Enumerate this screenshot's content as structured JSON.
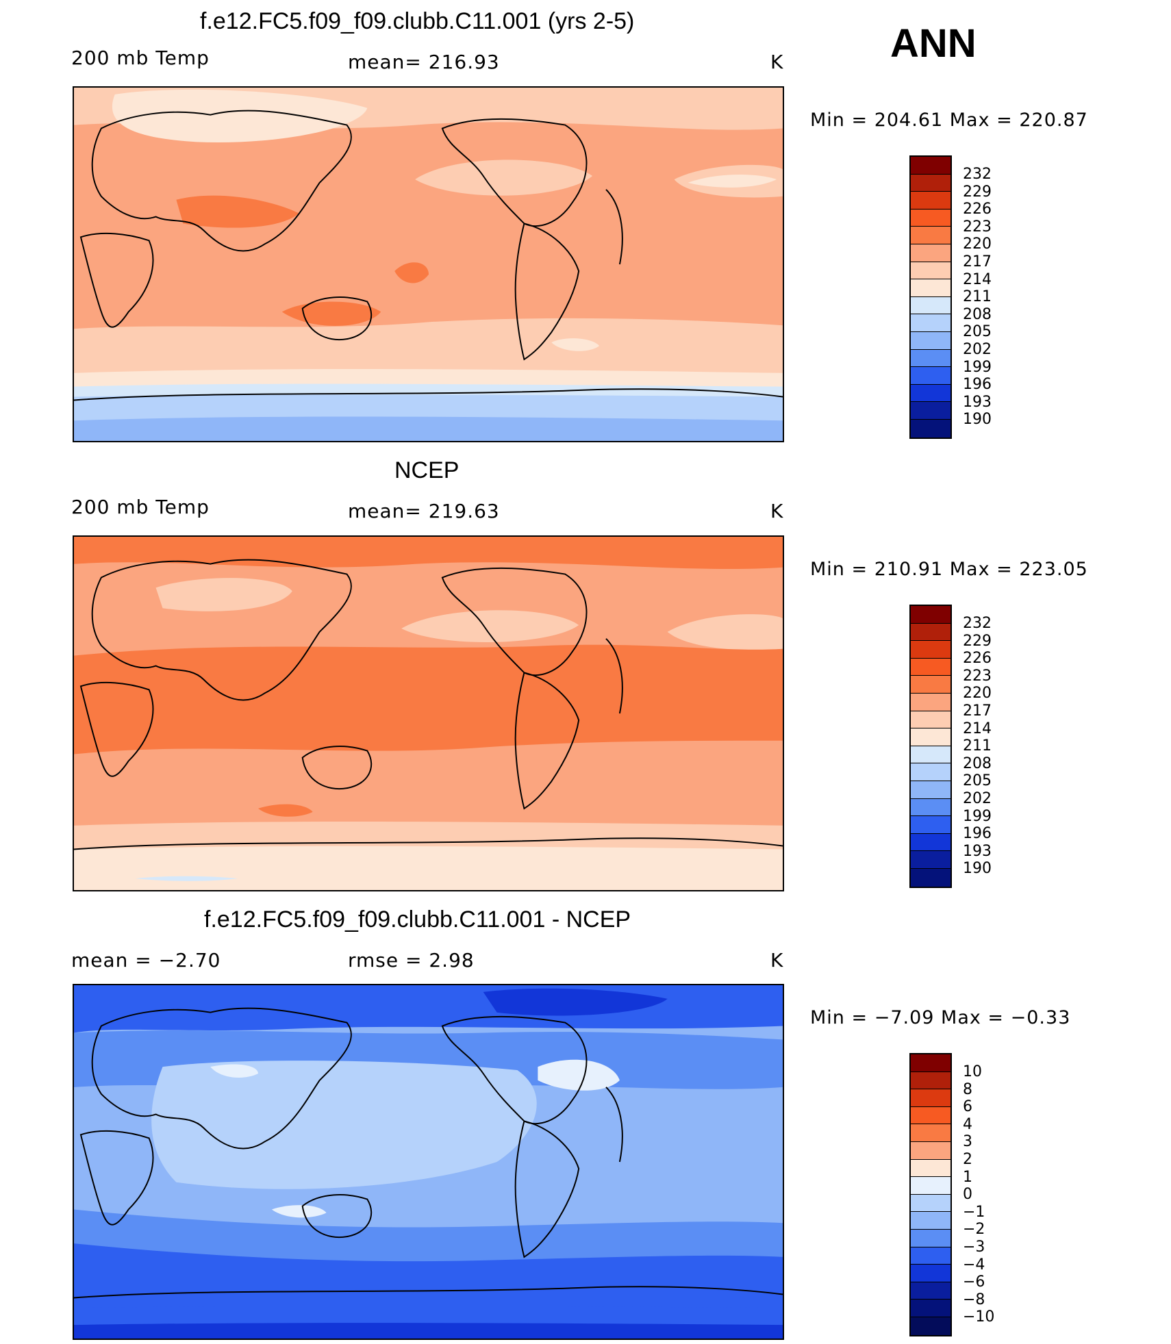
{
  "season": "ANN",
  "panels": [
    {
      "id": "model",
      "title": "f.e12.FC5.f09_f09.clubb.C11.001 (yrs 2-5)",
      "left_label": "200 mb Temp",
      "mid_label": "mean= 216.93",
      "units": "K",
      "minmax": "Min = 204.61 Max = 220.87",
      "colorbar_levels": [
        "232",
        "229",
        "226",
        "223",
        "220",
        "217",
        "214",
        "211",
        "208",
        "205",
        "202",
        "199",
        "196",
        "193",
        "190"
      ]
    },
    {
      "id": "obs",
      "title": "NCEP",
      "left_label": "200 mb Temp",
      "mid_label": "mean= 219.63",
      "units": "K",
      "minmax": "Min = 210.91 Max = 223.05",
      "colorbar_levels": [
        "232",
        "229",
        "226",
        "223",
        "220",
        "217",
        "214",
        "211",
        "208",
        "205",
        "202",
        "199",
        "196",
        "193",
        "190"
      ]
    },
    {
      "id": "diff",
      "title": "f.e12.FC5.f09_f09.clubb.C11.001 - NCEP",
      "left_label": "mean = −2.70",
      "mid_label": "rmse = 2.98",
      "units": "K",
      "minmax": "Min = −7.09 Max = −0.33",
      "colorbar_levels": [
        "10",
        "8",
        "6",
        "4",
        "3",
        "2",
        "1",
        "0",
        "−1",
        "−2",
        "−3",
        "−4",
        "−6",
        "−8",
        "−10"
      ]
    }
  ],
  "colors": {
    "abs_scale": [
      "#7f0000",
      "#b0200a",
      "#dc3a10",
      "#f75a22",
      "#f97a43",
      "#fba57f",
      "#fdcdb2",
      "#fde7d6",
      "#d6e8fa",
      "#b5d2fb",
      "#8fb6f8",
      "#5b8ef4",
      "#2e5ff0",
      "#1236d8",
      "#0a1e9e",
      "#04127a"
    ],
    "diff_scale": [
      "#7f0000",
      "#b0200a",
      "#dc3a10",
      "#f75a22",
      "#f97a43",
      "#fba57f",
      "#fde7d6",
      "#e7f1fd",
      "#b5d2fb",
      "#8fb6f8",
      "#5b8ef4",
      "#2e5ff0",
      "#1236d8",
      "#0a1e9e",
      "#04127a"
    ]
  }
}
